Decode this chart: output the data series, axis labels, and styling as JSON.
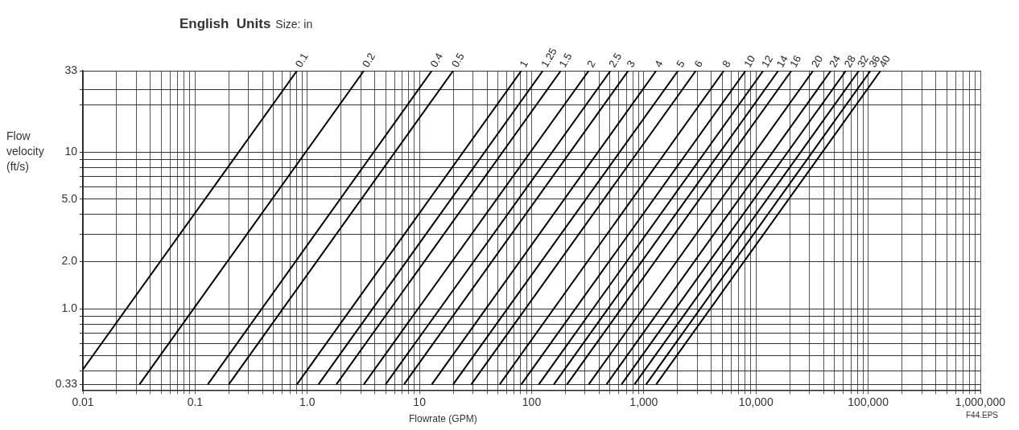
{
  "chart_data": {
    "type": "line",
    "title": "English  Units",
    "legend_title": "Size: in",
    "xlabel": "Flowrate (GPM)",
    "ylabel": "Flow velocity (ft/s)",
    "annotations": [
      "F44.EPS"
    ],
    "log": "xy",
    "grid": true,
    "legend": false,
    "marker": "none",
    "line_style": "solid",
    "xlim": [
      0.01,
      1000000
    ],
    "ylim": [
      0.33,
      33
    ],
    "xticks": [
      0.01,
      {
        "value": 0.02,
        "label": null
      },
      {
        "value": 0.03,
        "label": null
      },
      {
        "value": 0.04,
        "label": null
      },
      {
        "value": 0.05,
        "label": null
      },
      {
        "value": 0.06,
        "label": null
      },
      {
        "value": 0.07,
        "label": null
      },
      {
        "value": 0.08,
        "label": null
      },
      {
        "value": 0.09,
        "label": null
      },
      0.1,
      {
        "value": 0.2,
        "label": null
      },
      {
        "value": 0.3,
        "label": null
      },
      {
        "value": 0.4,
        "label": null
      },
      {
        "value": 0.5,
        "label": null
      },
      {
        "value": 0.6,
        "label": null
      },
      {
        "value": 0.7,
        "label": null
      },
      {
        "value": 0.8,
        "label": null
      },
      {
        "value": 0.9,
        "label": null
      },
      {
        "value": 1,
        "label": "1.0"
      },
      {
        "value": 2,
        "label": null
      },
      {
        "value": 3,
        "label": null
      },
      {
        "value": 4,
        "label": null
      },
      {
        "value": 5,
        "label": null
      },
      {
        "value": 6,
        "label": null
      },
      {
        "value": 7,
        "label": null
      },
      {
        "value": 8,
        "label": null
      },
      {
        "value": 9,
        "label": null
      },
      10,
      {
        "value": 20,
        "label": null
      },
      {
        "value": 30,
        "label": null
      },
      {
        "value": 40,
        "label": null
      },
      {
        "value": 50,
        "label": null
      },
      {
        "value": 60,
        "label": null
      },
      {
        "value": 70,
        "label": null
      },
      {
        "value": 80,
        "label": null
      },
      {
        "value": 90,
        "label": null
      },
      100,
      {
        "value": 200,
        "label": null
      },
      {
        "value": 300,
        "label": null
      },
      {
        "value": 400,
        "label": null
      },
      {
        "value": 500,
        "label": null
      },
      {
        "value": 600,
        "label": null
      },
      {
        "value": 700,
        "label": null
      },
      {
        "value": 800,
        "label": null
      },
      {
        "value": 900,
        "label": null
      },
      {
        "value": 1000,
        "label": "1,000"
      },
      {
        "value": 2000,
        "label": null
      },
      {
        "value": 3000,
        "label": null
      },
      {
        "value": 4000,
        "label": null
      },
      {
        "value": 5000,
        "label": null
      },
      {
        "value": 6000,
        "label": null
      },
      {
        "value": 7000,
        "label": null
      },
      {
        "value": 8000,
        "label": null
      },
      {
        "value": 9000,
        "label": null
      },
      {
        "value": 10000,
        "label": "10,000"
      },
      {
        "value": 20000,
        "label": null
      },
      {
        "value": 30000,
        "label": null
      },
      {
        "value": 40000,
        "label": null
      },
      {
        "value": 50000,
        "label": null
      },
      {
        "value": 60000,
        "label": null
      },
      {
        "value": 70000,
        "label": null
      },
      {
        "value": 80000,
        "label": null
      },
      {
        "value": 90000,
        "label": null
      },
      {
        "value": 100000,
        "label": "100,000"
      },
      {
        "value": 200000,
        "label": null
      },
      {
        "value": 300000,
        "label": null
      },
      {
        "value": 400000,
        "label": null
      },
      {
        "value": 500000,
        "label": null
      },
      {
        "value": 600000,
        "label": null
      },
      {
        "value": 700000,
        "label": null
      },
      {
        "value": 800000,
        "label": null
      },
      {
        "value": 900000,
        "label": null
      },
      {
        "value": 1000000,
        "label": "1,000,000"
      }
    ],
    "yticks": [
      0.33,
      {
        "value": 0.4,
        "label": null
      },
      {
        "value": 0.5,
        "label": null
      },
      {
        "value": 0.6,
        "label": null
      },
      {
        "value": 0.7,
        "label": null
      },
      {
        "value": 0.8,
        "label": null
      },
      {
        "value": 0.9,
        "label": null
      },
      {
        "value": 1,
        "label": "1.0"
      },
      {
        "value": 2,
        "label": "2.0"
      },
      {
        "value": 3,
        "label": null
      },
      {
        "value": 4,
        "label": null
      },
      {
        "value": 5,
        "label": "5.0"
      },
      {
        "value": 6,
        "label": null
      },
      {
        "value": 7,
        "label": null
      },
      {
        "value": 8,
        "label": null
      },
      {
        "value": 9,
        "label": null
      },
      10,
      {
        "value": 20,
        "label": null
      },
      {
        "value": 25,
        "label": null
      },
      33
    ],
    "series": [
      {
        "name": "0.1",
        "color": "#000000",
        "x": [
          0.01,
          0.81
        ],
        "values": [
          0.41,
          33
        ]
      },
      {
        "name": "0.2",
        "color": "#000000",
        "x": [
          0.032,
          3.2
        ],
        "values": [
          0.33,
          33
        ]
      },
      {
        "name": "0.4",
        "color": "#000000",
        "x": [
          0.13,
          12.9
        ],
        "values": [
          0.33,
          33
        ]
      },
      {
        "name": "0.5",
        "color": "#000000",
        "x": [
          0.2,
          20
        ],
        "values": [
          0.33,
          33
        ]
      },
      {
        "name": "1",
        "color": "#000000",
        "x": [
          0.81,
          81
        ],
        "values": [
          0.33,
          33
        ]
      },
      {
        "name": "1.25",
        "color": "#000000",
        "x": [
          1.26,
          126
        ],
        "values": [
          0.33,
          33
        ]
      },
      {
        "name": "1.5",
        "color": "#000000",
        "x": [
          1.82,
          182
        ],
        "values": [
          0.33,
          33
        ]
      },
      {
        "name": "2",
        "color": "#000000",
        "x": [
          3.2,
          323
        ],
        "values": [
          0.33,
          33
        ]
      },
      {
        "name": "2.5",
        "color": "#000000",
        "x": [
          5,
          505
        ],
        "values": [
          0.33,
          33
        ]
      },
      {
        "name": "3",
        "color": "#000000",
        "x": [
          7.3,
          727
        ],
        "values": [
          0.33,
          33
        ]
      },
      {
        "name": "4",
        "color": "#000000",
        "x": [
          12.9,
          1290
        ],
        "values": [
          0.33,
          33
        ]
      },
      {
        "name": "5",
        "color": "#000000",
        "x": [
          20,
          2020
        ],
        "values": [
          0.33,
          33
        ]
      },
      {
        "name": "6",
        "color": "#000000",
        "x": [
          29,
          2910
        ],
        "values": [
          0.33,
          33
        ]
      },
      {
        "name": "8",
        "color": "#000000",
        "x": [
          52,
          5170
        ],
        "values": [
          0.33,
          33
        ]
      },
      {
        "name": "10",
        "color": "#000000",
        "x": [
          81,
          8080
        ],
        "values": [
          0.33,
          33
        ]
      },
      {
        "name": "12",
        "color": "#000000",
        "x": [
          116,
          11600
        ],
        "values": [
          0.33,
          33
        ]
      },
      {
        "name": "14",
        "color": "#000000",
        "x": [
          158,
          15800
        ],
        "values": [
          0.33,
          33
        ]
      },
      {
        "name": "16",
        "color": "#000000",
        "x": [
          207,
          20700
        ],
        "values": [
          0.33,
          33
        ]
      },
      {
        "name": "20",
        "color": "#000000",
        "x": [
          323,
          32300
        ],
        "values": [
          0.33,
          33
        ]
      },
      {
        "name": "24",
        "color": "#000000",
        "x": [
          465,
          46500
        ],
        "values": [
          0.33,
          33
        ]
      },
      {
        "name": "28",
        "color": "#000000",
        "x": [
          633,
          63300
        ],
        "values": [
          0.33,
          33
        ]
      },
      {
        "name": "32",
        "color": "#000000",
        "x": [
          827,
          82700
        ],
        "values": [
          0.33,
          33
        ]
      },
      {
        "name": "36",
        "color": "#000000",
        "x": [
          1050,
          105000
        ],
        "values": [
          0.33,
          33
        ]
      },
      {
        "name": "40",
        "color": "#000000",
        "x": [
          1290,
          129000
        ],
        "values": [
          0.33,
          33
        ]
      }
    ]
  }
}
